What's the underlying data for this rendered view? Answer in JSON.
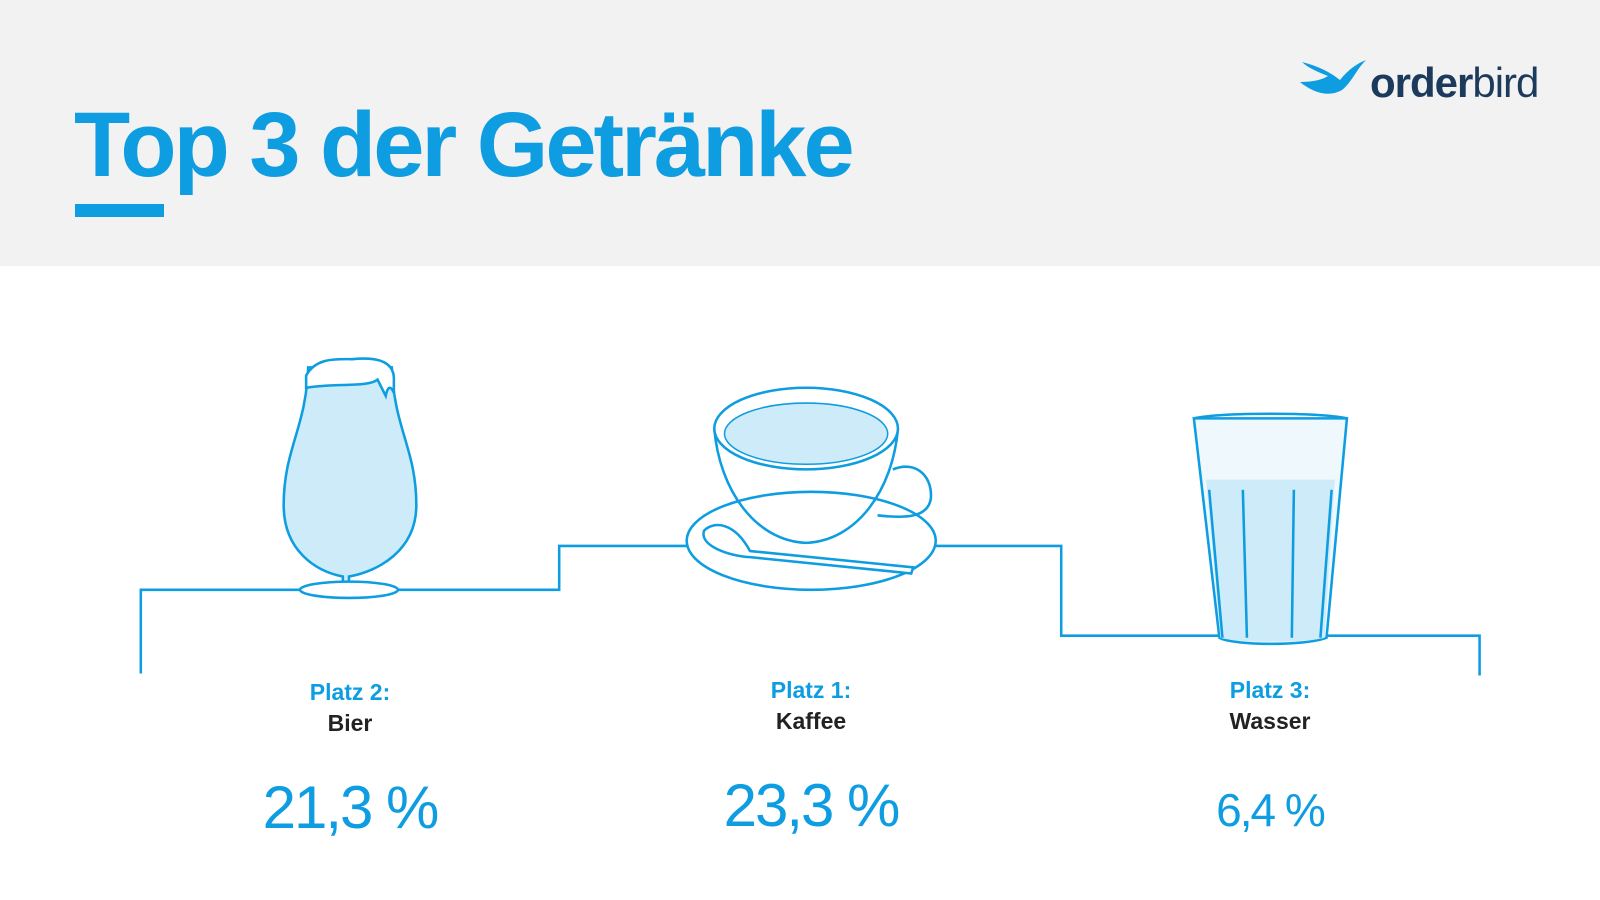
{
  "header": {
    "title": "Top 3 der Getränke",
    "logo": {
      "bold": "order",
      "light": "bird"
    }
  },
  "podium": [
    {
      "rank": "Platz 2:",
      "name": "Bier",
      "value": "21,3 %"
    },
    {
      "rank": "Platz 1:",
      "name": "Kaffee",
      "value": "23,3 %"
    },
    {
      "rank": "Platz 3:",
      "name": "Wasser",
      "value": "6,4 %"
    }
  ]
}
